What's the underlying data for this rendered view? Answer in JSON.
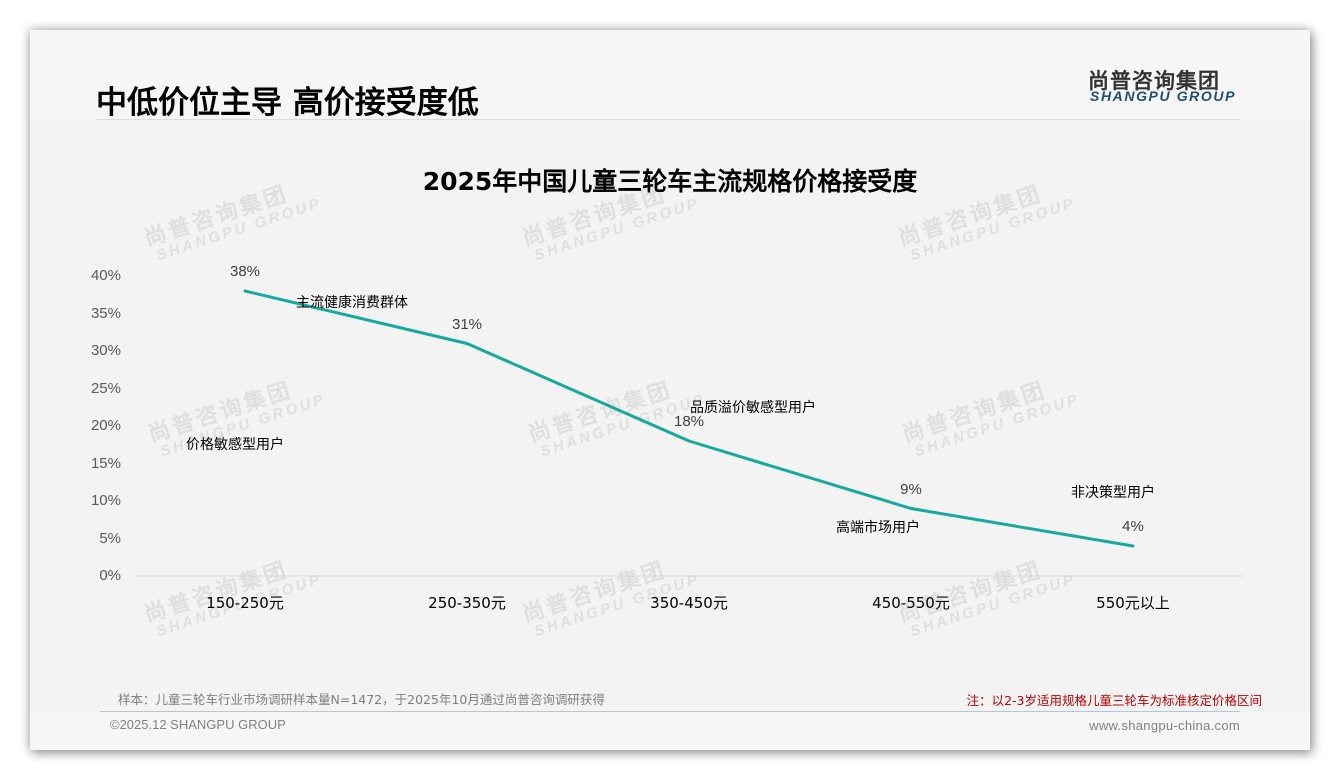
{
  "header": {
    "page_title": "中低价位主导 高价接受度低",
    "logo_cn": "尚普咨询集团",
    "logo_en": "SHANGPU GROUP"
  },
  "watermark": {
    "cn": "尚普咨询集团",
    "en": "SHANGPU GROUP"
  },
  "colors": {
    "line": "#17a89e",
    "accent_blue": "#1f4e79",
    "note_red": "#c00000",
    "background": "#f3f3f3"
  },
  "chart_data": {
    "type": "line",
    "title": "2025年中国儿童三轮车主流规格价格接受度",
    "xlabel": "",
    "ylabel": "",
    "categories": [
      "150-250元",
      "250-350元",
      "350-450元",
      "450-550元",
      "550元以上"
    ],
    "values": [
      38,
      31,
      18,
      9,
      4
    ],
    "value_labels": [
      "38%",
      "31%",
      "18%",
      "9%",
      "4%"
    ],
    "ylim": [
      0,
      40
    ],
    "y_ticks": [
      "0%",
      "5%",
      "10%",
      "15%",
      "20%",
      "25%",
      "30%",
      "35%",
      "40%"
    ],
    "grid": false,
    "legend": null,
    "annotations": [
      {
        "text": "价格敏感型用户",
        "near": "150-250元"
      },
      {
        "text": "主流健康消费群体",
        "near": "150-250元 to 250-350元"
      },
      {
        "text": "品质溢价敏感型用户",
        "near": "350-450元"
      },
      {
        "text": "高端市场用户",
        "near": "450-550元"
      },
      {
        "text": "非决策型用户",
        "near": "550元以上"
      }
    ]
  },
  "footer": {
    "sample_note": "样本：儿童三轮车行业市场调研样本量N=1472，于2025年10月通过尚普咨询调研获得",
    "red_note": "注：以2-3岁适用规格儿童三轮车为标准核定价格区间",
    "copyright": "©2025.12 SHANGPU GROUP",
    "website": "www.shangpu-china.com"
  }
}
